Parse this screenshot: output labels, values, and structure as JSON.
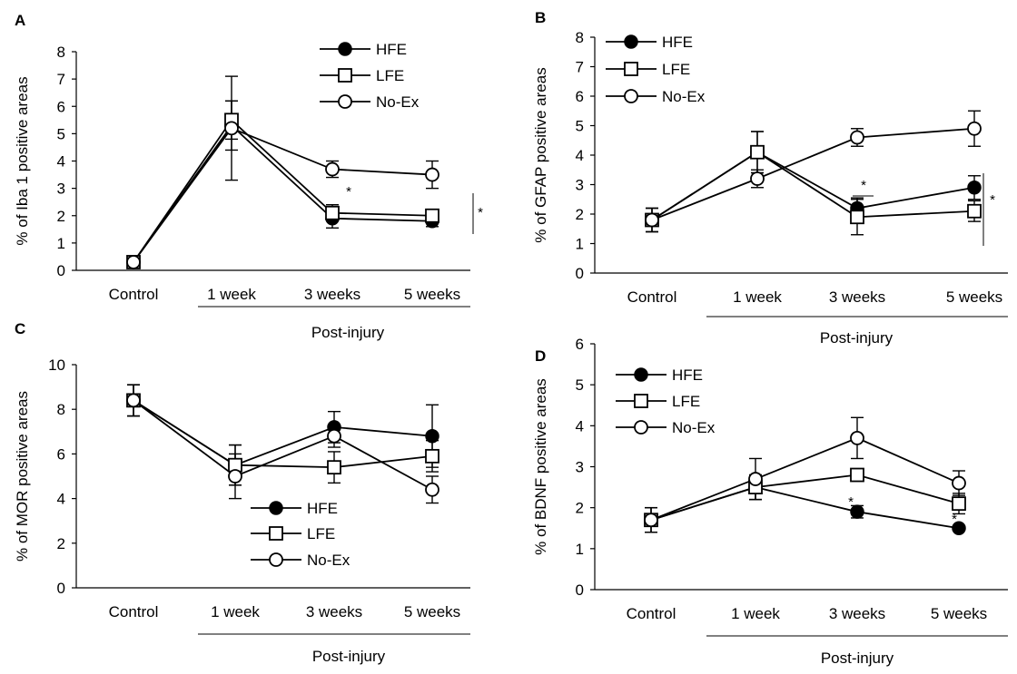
{
  "chart_data": [
    {
      "panel": "A",
      "type": "line",
      "ylabel": "% of Iba 1 positive areas",
      "categories": [
        "Control",
        "1 week",
        "3 weeks",
        "5 weeks"
      ],
      "group_label": "Post-injury",
      "ylim": [
        0,
        8
      ],
      "yticks": [
        "0",
        "1",
        "2",
        "3",
        "4",
        "5",
        "6",
        "7",
        "8"
      ],
      "legend_position": "top-right",
      "series": [
        {
          "name": "HFE",
          "marker": "filled-circle",
          "values": [
            0.3,
            5.3,
            1.9,
            1.8
          ],
          "err": [
            0.1,
            0.9,
            0.35,
            0.2
          ]
        },
        {
          "name": "LFE",
          "marker": "open-square",
          "values": [
            0.3,
            5.5,
            2.1,
            2.0
          ],
          "err": [
            0.1,
            0.7,
            0.3,
            0.2
          ]
        },
        {
          "name": "No-Ex",
          "marker": "open-circle",
          "values": [
            0.3,
            5.2,
            3.7,
            3.5
          ],
          "err": [
            0.1,
            1.9,
            0.3,
            0.5
          ]
        }
      ],
      "annotations": [
        "*",
        "*"
      ]
    },
    {
      "panel": "B",
      "type": "line",
      "ylabel": "% of GFAP positive areas",
      "categories": [
        "Control",
        "1 week",
        "3 weeks",
        "5 weeks"
      ],
      "group_label": "Post-injury",
      "ylim": [
        0,
        8
      ],
      "yticks": [
        "0",
        "1",
        "2",
        "3",
        "4",
        "5",
        "6",
        "7",
        "8"
      ],
      "legend_position": "top-left",
      "series": [
        {
          "name": "HFE",
          "marker": "filled-circle",
          "values": [
            1.8,
            4.1,
            2.2,
            2.9
          ],
          "err": [
            0.4,
            0.7,
            0.35,
            0.4
          ]
        },
        {
          "name": "LFE",
          "marker": "open-square",
          "values": [
            1.8,
            4.1,
            1.9,
            2.1
          ],
          "err": [
            0.4,
            0.7,
            0.6,
            0.35
          ]
        },
        {
          "name": "No-Ex",
          "marker": "open-circle",
          "values": [
            1.8,
            3.2,
            4.6,
            4.9
          ],
          "err": [
            0.4,
            0.3,
            0.3,
            0.6
          ]
        }
      ],
      "annotations": [
        "*",
        "*"
      ]
    },
    {
      "panel": "C",
      "type": "line",
      "ylabel": "% of MOR positive areas",
      "categories": [
        "Control",
        "1 week",
        "3 weeks",
        "5 weeks"
      ],
      "group_label": "Post-injury",
      "ylim": [
        0,
        10
      ],
      "yticks": [
        "0",
        "2",
        "4",
        "6",
        "8",
        "10"
      ],
      "legend_position": "bottom-center",
      "series": [
        {
          "name": "HFE",
          "marker": "filled-circle",
          "values": [
            8.4,
            5.5,
            7.2,
            6.8
          ],
          "err": [
            0.7,
            0.9,
            0.7,
            1.4
          ]
        },
        {
          "name": "LFE",
          "marker": "open-square",
          "values": [
            8.4,
            5.5,
            5.4,
            5.9
          ],
          "err": [
            0.7,
            0.9,
            0.7,
            0.7
          ]
        },
        {
          "name": "No-Ex",
          "marker": "open-circle",
          "values": [
            8.4,
            5.0,
            6.8,
            4.4
          ],
          "err": [
            0.7,
            1.0,
            0.5,
            0.6
          ]
        }
      ],
      "annotations": []
    },
    {
      "panel": "D",
      "type": "line",
      "ylabel": "% of BDNF positive areas",
      "categories": [
        "Control",
        "1 week",
        "3 weeks",
        "5 weeks"
      ],
      "group_label": "Post-injury",
      "ylim": [
        0,
        6
      ],
      "yticks": [
        "0",
        "1",
        "2",
        "3",
        "4",
        "5",
        "6"
      ],
      "legend_position": "top-left",
      "series": [
        {
          "name": "HFE",
          "marker": "filled-circle",
          "values": [
            1.7,
            2.5,
            1.9,
            1.5
          ],
          "err": [
            0.3,
            0.3,
            0.15,
            0.05
          ]
        },
        {
          "name": "LFE",
          "marker": "open-square",
          "values": [
            1.7,
            2.5,
            2.8,
            2.1
          ],
          "err": [
            0.3,
            0.3,
            0.15,
            0.25
          ]
        },
        {
          "name": "No-Ex",
          "marker": "open-circle",
          "values": [
            1.7,
            2.7,
            3.7,
            2.6
          ],
          "err": [
            0.3,
            0.5,
            0.5,
            0.3
          ]
        }
      ],
      "annotations": [
        "*",
        "*"
      ]
    }
  ]
}
